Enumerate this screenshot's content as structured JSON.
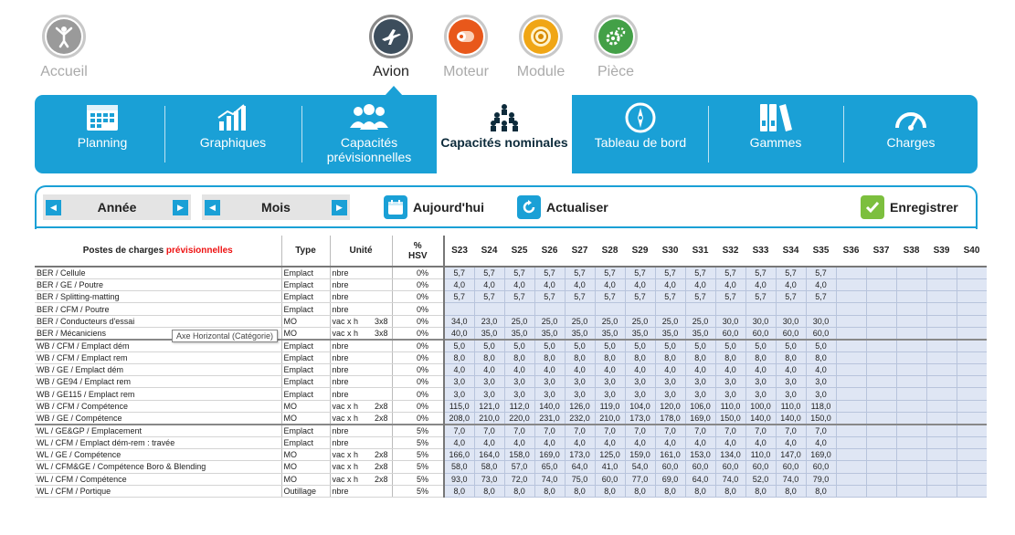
{
  "topnav": [
    {
      "label": "Accueil",
      "icon": "person-icon",
      "color": "#9a9a9a",
      "active": false
    },
    {
      "label": "Avion",
      "icon": "airplane-icon",
      "color": "#3c4d5c",
      "active": true
    },
    {
      "label": "Moteur",
      "icon": "engine-icon",
      "color": "#e8581b",
      "active": false
    },
    {
      "label": "Module",
      "icon": "module-icon",
      "color": "#f0a615",
      "active": false
    },
    {
      "label": "Pièce",
      "icon": "gears-icon",
      "color": "#43a047",
      "active": false
    }
  ],
  "ribbon": [
    {
      "label": "Planning",
      "icon": "calendar-icon",
      "active": false
    },
    {
      "label": "Graphiques",
      "icon": "bar-chart-icon",
      "active": false
    },
    {
      "label": "Capacités prévisionnelles",
      "icon": "people-icon",
      "active": false
    },
    {
      "label": "Capacités nominales",
      "icon": "team-icon",
      "active": true
    },
    {
      "label": "Tableau de bord",
      "icon": "compass-icon",
      "active": false
    },
    {
      "label": "Gammes",
      "icon": "binders-icon",
      "active": false
    },
    {
      "label": "Charges",
      "icon": "gauge-icon",
      "active": false
    }
  ],
  "toolbar": {
    "year": "Année",
    "month": "Mois",
    "today": "Aujourd'hui",
    "refresh": "Actualiser",
    "save": "Enregistrer",
    "prev": "◀",
    "next": "▶"
  },
  "tooltip": "Axe Horizontal (Catégorie)",
  "table": {
    "headers": {
      "postes_a": "Postes de charges ",
      "postes_b": "prévisionnelles",
      "type": "Type",
      "unite": "Unité",
      "hsv_a": "%",
      "hsv_b": "HSV"
    },
    "weeks": [
      "S23",
      "S24",
      "S25",
      "S26",
      "S27",
      "S28",
      "S29",
      "S30",
      "S31",
      "S32",
      "S33",
      "S34",
      "S35",
      "S36",
      "S37",
      "S38",
      "S39",
      "S40"
    ],
    "rows": [
      {
        "p": "BER / Cellule",
        "t": "Emplact",
        "u": "nbre",
        "u2": "",
        "h": "0%",
        "v": [
          "5,7",
          "5,7",
          "5,7",
          "5,7",
          "5,7",
          "5,7",
          "5,7",
          "5,7",
          "5,7",
          "5,7",
          "5,7",
          "5,7",
          "5,7"
        ]
      },
      {
        "p": "BER / GE / Poutre",
        "t": "Emplact",
        "u": "nbre",
        "u2": "",
        "h": "0%",
        "v": [
          "4,0",
          "4,0",
          "4,0",
          "4,0",
          "4,0",
          "4,0",
          "4,0",
          "4,0",
          "4,0",
          "4,0",
          "4,0",
          "4,0",
          "4,0"
        ]
      },
      {
        "p": "BER / Splitting-matting",
        "t": "Emplact",
        "u": "nbre",
        "u2": "",
        "h": "0%",
        "v": [
          "5,7",
          "5,7",
          "5,7",
          "5,7",
          "5,7",
          "5,7",
          "5,7",
          "5,7",
          "5,7",
          "5,7",
          "5,7",
          "5,7",
          "5,7"
        ]
      },
      {
        "p": "BER / CFM / Poutre",
        "t": "Emplact",
        "u": "nbre",
        "u2": "",
        "h": "0%",
        "v": []
      },
      {
        "p": "BER / Conducteurs d'essai",
        "t": "MO",
        "u": "vac x h",
        "u2": "3x8",
        "h": "0%",
        "v": [
          "34,0",
          "23,0",
          "25,0",
          "25,0",
          "25,0",
          "25,0",
          "25,0",
          "25,0",
          "25,0",
          "30,0",
          "30,0",
          "30,0",
          "30,0"
        ]
      },
      {
        "p": "BER / Mécaniciens",
        "t": "MO",
        "u": "vac x h",
        "u2": "3x8",
        "h": "0%",
        "v": [
          "40,0",
          "35,0",
          "35,0",
          "35,0",
          "35,0",
          "35,0",
          "35,0",
          "35,0",
          "35,0",
          "60,0",
          "60,0",
          "60,0",
          "60,0"
        ]
      },
      {
        "p": "WB / CFM / Emplact dém",
        "t": "Emplact",
        "u": "nbre",
        "u2": "",
        "h": "0%",
        "v": [
          "5,0",
          "5,0",
          "5,0",
          "5,0",
          "5,0",
          "5,0",
          "5,0",
          "5,0",
          "5,0",
          "5,0",
          "5,0",
          "5,0",
          "5,0"
        ]
      },
      {
        "p": "WB / CFM / Emplact rem",
        "t": "Emplact",
        "u": "nbre",
        "u2": "",
        "h": "0%",
        "v": [
          "8,0",
          "8,0",
          "8,0",
          "8,0",
          "8,0",
          "8,0",
          "8,0",
          "8,0",
          "8,0",
          "8,0",
          "8,0",
          "8,0",
          "8,0"
        ]
      },
      {
        "p": "WB / GE / Emplact dém",
        "t": "Emplact",
        "u": "nbre",
        "u2": "",
        "h": "0%",
        "v": [
          "4,0",
          "4,0",
          "4,0",
          "4,0",
          "4,0",
          "4,0",
          "4,0",
          "4,0",
          "4,0",
          "4,0",
          "4,0",
          "4,0",
          "4,0"
        ]
      },
      {
        "p": "WB / GE94 / Emplact rem",
        "t": "Emplact",
        "u": "nbre",
        "u2": "",
        "h": "0%",
        "v": [
          "3,0",
          "3,0",
          "3,0",
          "3,0",
          "3,0",
          "3,0",
          "3,0",
          "3,0",
          "3,0",
          "3,0",
          "3,0",
          "3,0",
          "3,0"
        ]
      },
      {
        "p": "WB / GE115 / Emplact rem",
        "t": "Emplact",
        "u": "nbre",
        "u2": "",
        "h": "0%",
        "v": [
          "3,0",
          "3,0",
          "3,0",
          "3,0",
          "3,0",
          "3,0",
          "3,0",
          "3,0",
          "3,0",
          "3,0",
          "3,0",
          "3,0",
          "3,0"
        ]
      },
      {
        "p": "WB / CFM / Compétence",
        "t": "MO",
        "u": "vac x h",
        "u2": "2x8",
        "h": "0%",
        "v": [
          "115,0",
          "121,0",
          "112,0",
          "140,0",
          "126,0",
          "119,0",
          "104,0",
          "120,0",
          "106,0",
          "110,0",
          "100,0",
          "110,0",
          "118,0"
        ]
      },
      {
        "p": "WB / GE / Compétence",
        "t": "MO",
        "u": "vac x h",
        "u2": "2x8",
        "h": "0%",
        "v": [
          "208,0",
          "210,0",
          "220,0",
          "231,0",
          "232,0",
          "210,0",
          "173,0",
          "178,0",
          "169,0",
          "150,0",
          "140,0",
          "140,0",
          "150,0"
        ]
      },
      {
        "p": "WL / GE&GP / Emplacement",
        "t": "Emplact",
        "u": "nbre",
        "u2": "",
        "h": "5%",
        "v": [
          "7,0",
          "7,0",
          "7,0",
          "7,0",
          "7,0",
          "7,0",
          "7,0",
          "7,0",
          "7,0",
          "7,0",
          "7,0",
          "7,0",
          "7,0"
        ]
      },
      {
        "p": "WL / CFM / Emplact dém-rem : travée",
        "t": "Emplact",
        "u": "nbre",
        "u2": "",
        "h": "5%",
        "v": [
          "4,0",
          "4,0",
          "4,0",
          "4,0",
          "4,0",
          "4,0",
          "4,0",
          "4,0",
          "4,0",
          "4,0",
          "4,0",
          "4,0",
          "4,0"
        ]
      },
      {
        "p": "WL / GE / Compétence",
        "t": "MO",
        "u": "vac x h",
        "u2": "2x8",
        "h": "5%",
        "v": [
          "166,0",
          "164,0",
          "158,0",
          "169,0",
          "173,0",
          "125,0",
          "159,0",
          "161,0",
          "153,0",
          "134,0",
          "110,0",
          "147,0",
          "169,0"
        ]
      },
      {
        "p": "WL / CFM&GE / Compétence Boro & Blending",
        "t": "MO",
        "u": "vac x h",
        "u2": "2x8",
        "h": "5%",
        "v": [
          "58,0",
          "58,0",
          "57,0",
          "65,0",
          "64,0",
          "41,0",
          "54,0",
          "60,0",
          "60,0",
          "60,0",
          "60,0",
          "60,0",
          "60,0"
        ]
      },
      {
        "p": "WL / CFM / Compétence",
        "t": "MO",
        "u": "vac x h",
        "u2": "2x8",
        "h": "5%",
        "v": [
          "93,0",
          "73,0",
          "72,0",
          "74,0",
          "75,0",
          "60,0",
          "77,0",
          "69,0",
          "64,0",
          "74,0",
          "52,0",
          "74,0",
          "79,0"
        ]
      },
      {
        "p": "WL / CFM / Portique",
        "t": "Outillage",
        "u": "nbre",
        "u2": "",
        "h": "5%",
        "v": [
          "8,0",
          "8,0",
          "8,0",
          "8,0",
          "8,0",
          "8,0",
          "8,0",
          "8,0",
          "8,0",
          "8,0",
          "8,0",
          "8,0",
          "8,0"
        ]
      }
    ]
  }
}
